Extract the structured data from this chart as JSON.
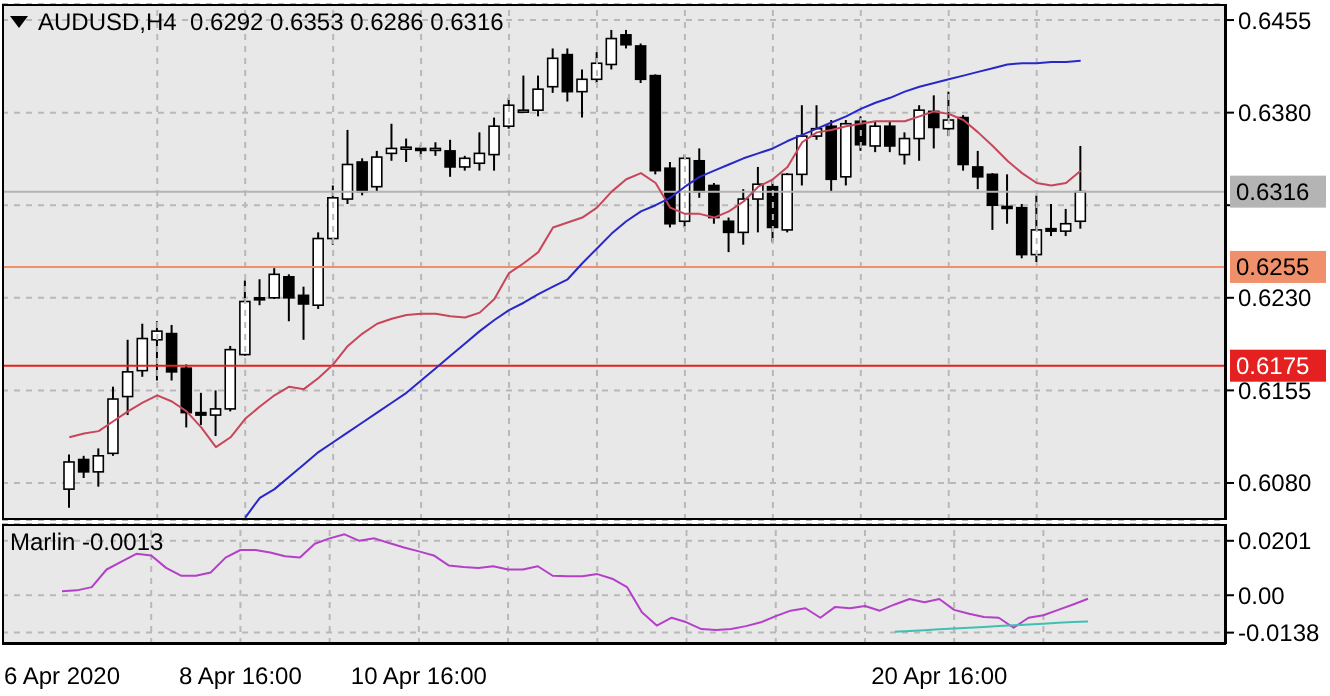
{
  "chart_data": [
    {
      "type": "candlestick",
      "title": "AUDUSD,H4  0.6292 0.6353 0.6286 0.6316",
      "categories": [
        null,
        null,
        null,
        null,
        null,
        null,
        null,
        null,
        null,
        null,
        null,
        null,
        null,
        null,
        null,
        null,
        null,
        null,
        null,
        null,
        null,
        null,
        null,
        null,
        null,
        null,
        null,
        null,
        null,
        null,
        null,
        null,
        null,
        null,
        null,
        null,
        null,
        null,
        null,
        null,
        null,
        null,
        null,
        null,
        null,
        null,
        null,
        null,
        null,
        null,
        null,
        null,
        null,
        null,
        null,
        null,
        null,
        null,
        null,
        null,
        null,
        null,
        null,
        null,
        null,
        null,
        null,
        null,
        null,
        null
      ],
      "ohlc": [
        [
          0.6075,
          0.6103,
          0.606,
          0.6097
        ],
        [
          0.6099,
          0.6102,
          0.6084,
          0.6089
        ],
        [
          0.6089,
          0.6108,
          0.6077,
          0.6102
        ],
        [
          0.6104,
          0.6158,
          0.6102,
          0.6148
        ],
        [
          0.615,
          0.6196,
          0.6135,
          0.617
        ],
        [
          0.6171,
          0.6209,
          0.6166,
          0.6197
        ],
        [
          0.6196,
          0.6211,
          0.6163,
          0.6203
        ],
        [
          0.6201,
          0.6208,
          0.6163,
          0.617
        ],
        [
          0.6173,
          0.6176,
          0.6125,
          0.6137
        ],
        [
          0.6137,
          0.6153,
          0.6127,
          0.6135
        ],
        [
          0.6135,
          0.6155,
          0.6118,
          0.614
        ],
        [
          0.614,
          0.6191,
          0.6138,
          0.6188
        ],
        [
          0.6184,
          0.6244,
          0.6183,
          0.6227
        ],
        [
          0.623,
          0.6245,
          0.6224,
          0.6229
        ],
        [
          0.623,
          0.6254,
          0.6229,
          0.6249
        ],
        [
          0.6247,
          0.6249,
          0.6211,
          0.623
        ],
        [
          0.6232,
          0.6239,
          0.6196,
          0.6225
        ],
        [
          0.6224,
          0.6283,
          0.6221,
          0.6278
        ],
        [
          0.6278,
          0.6321,
          0.6273,
          0.6311
        ],
        [
          0.631,
          0.6366,
          0.6306,
          0.6338
        ],
        [
          0.634,
          0.6343,
          0.6313,
          0.6316
        ],
        [
          0.632,
          0.6349,
          0.6316,
          0.6344
        ],
        [
          0.6347,
          0.6371,
          0.6341,
          0.6351
        ],
        [
          0.6352,
          0.6359,
          0.634,
          0.6352
        ],
        [
          0.6351,
          0.6354,
          0.6344,
          0.635
        ],
        [
          0.635,
          0.6356,
          0.6345,
          0.6351
        ],
        [
          0.6349,
          0.6358,
          0.6328,
          0.6336
        ],
        [
          0.6336,
          0.6345,
          0.6333,
          0.6343
        ],
        [
          0.6339,
          0.6364,
          0.6333,
          0.6347
        ],
        [
          0.6346,
          0.6376,
          0.6333,
          0.6369
        ],
        [
          0.6369,
          0.6392,
          0.6367,
          0.6386
        ],
        [
          0.6382,
          0.641,
          0.638,
          0.6382
        ],
        [
          0.6382,
          0.641,
          0.6377,
          0.6399
        ],
        [
          0.6401,
          0.6432,
          0.6396,
          0.6424
        ],
        [
          0.6427,
          0.6432,
          0.6389,
          0.6397
        ],
        [
          0.6397,
          0.6415,
          0.6376,
          0.6407
        ],
        [
          0.6407,
          0.6429,
          0.6404,
          0.642
        ],
        [
          0.6419,
          0.6447,
          0.6415,
          0.644
        ],
        [
          0.6443,
          0.6447,
          0.6432,
          0.6435
        ],
        [
          0.6434,
          0.6436,
          0.6404,
          0.6407
        ],
        [
          0.641,
          0.6411,
          0.633,
          0.6333
        ],
        [
          0.6335,
          0.634,
          0.6287,
          0.629
        ],
        [
          0.6292,
          0.6346,
          0.6287,
          0.6343
        ],
        [
          0.6341,
          0.6351,
          0.6311,
          0.6316
        ],
        [
          0.6321,
          0.6323,
          0.629,
          0.6295
        ],
        [
          0.6292,
          0.6295,
          0.6267,
          0.6283
        ],
        [
          0.6283,
          0.6318,
          0.6273,
          0.631
        ],
        [
          0.631,
          0.6336,
          0.6283,
          0.6322
        ],
        [
          0.632,
          0.6325,
          0.6275,
          0.6287
        ],
        [
          0.6285,
          0.6331,
          0.6283,
          0.633
        ],
        [
          0.633,
          0.6386,
          0.6321,
          0.6361
        ],
        [
          0.6361,
          0.6386,
          0.6358,
          0.6367
        ],
        [
          0.6369,
          0.6374,
          0.6316,
          0.6326
        ],
        [
          0.6328,
          0.6374,
          0.6321,
          0.6371
        ],
        [
          0.6373,
          0.6377,
          0.6349,
          0.6354
        ],
        [
          0.6353,
          0.6373,
          0.6348,
          0.6369
        ],
        [
          0.6369,
          0.6373,
          0.6348,
          0.6353
        ],
        [
          0.6346,
          0.6364,
          0.6338,
          0.6359
        ],
        [
          0.6359,
          0.6386,
          0.6341,
          0.6382
        ],
        [
          0.6381,
          0.6394,
          0.6351,
          0.6368
        ],
        [
          0.6367,
          0.6397,
          0.6361,
          0.6374
        ],
        [
          0.6376,
          0.6378,
          0.6333,
          0.6338
        ],
        [
          0.6336,
          0.6349,
          0.6318,
          0.6328
        ],
        [
          0.633,
          0.6331,
          0.6285,
          0.6305
        ],
        [
          0.6304,
          0.633,
          0.629,
          0.6303
        ],
        [
          0.6303,
          0.6306,
          0.6262,
          0.6265
        ],
        [
          0.6265,
          0.6313,
          0.6259,
          0.6285
        ],
        [
          0.6286,
          0.6306,
          0.628,
          0.6284
        ],
        [
          0.6284,
          0.6302,
          0.628,
          0.629
        ],
        [
          0.6292,
          0.6353,
          0.6286,
          0.6316
        ]
      ],
      "series": [
        {
          "type": "line",
          "color": "#c8465a",
          "values": [
            0.6117,
            0.612,
            0.6122,
            0.613,
            0.6138,
            0.6145,
            0.6151,
            0.6146,
            0.6138,
            0.6125,
            0.6109,
            0.6117,
            0.6132,
            0.6142,
            0.6151,
            0.6158,
            0.6156,
            0.6165,
            0.6176,
            0.6191,
            0.6201,
            0.6209,
            0.6213,
            0.6216,
            0.6217,
            0.6217,
            0.6215,
            0.6214,
            0.6218,
            0.6229,
            0.625,
            0.6258,
            0.6267,
            0.6287,
            0.6291,
            0.6295,
            0.6303,
            0.6316,
            0.6326,
            0.6331,
            0.6323,
            0.6303,
            0.6298,
            0.6298,
            0.6295,
            0.63,
            0.6308,
            0.632,
            0.6326,
            0.6336,
            0.6356,
            0.6364,
            0.6366,
            0.6369,
            0.6371,
            0.6373,
            0.6373,
            0.6373,
            0.6377,
            0.6381,
            0.6379,
            0.6374,
            0.6364,
            0.6353,
            0.6341,
            0.6331,
            0.6323,
            0.6321,
            0.6323,
            0.6333
          ]
        },
        {
          "type": "line",
          "color": "#2828c8",
          "values": [
            null,
            null,
            null,
            null,
            null,
            null,
            null,
            null,
            null,
            null,
            null,
            null,
            0.6052,
            0.6068,
            0.6075,
            0.6085,
            0.6095,
            0.6105,
            0.6113,
            0.6121,
            0.6129,
            0.6137,
            0.6145,
            0.6153,
            0.6163,
            0.6173,
            0.6183,
            0.6193,
            0.6203,
            0.6212,
            0.622,
            0.6226,
            0.6233,
            0.6239,
            0.6245,
            0.6258,
            0.627,
            0.6282,
            0.6292,
            0.63,
            0.6305,
            0.6311,
            0.632,
            0.6328,
            0.6333,
            0.6338,
            0.6343,
            0.6347,
            0.6351,
            0.6357,
            0.6362,
            0.6367,
            0.6372,
            0.6377,
            0.6383,
            0.6388,
            0.6392,
            0.6397,
            0.6401,
            0.6404,
            0.6407,
            0.641,
            0.6413,
            0.6416,
            0.6419,
            0.642,
            0.642,
            0.6421,
            0.6421,
            0.6422
          ]
        }
      ],
      "ylim": [
        0.605,
        0.6468
      ],
      "yticks": [
        0.6455,
        {
          "value": 0.638,
          "label": "0.6380"
        },
        {
          "value": 0.6305,
          "label": null
        },
        {
          "value": 0.623,
          "label": "0.6230"
        },
        0.6155,
        {
          "value": 0.608,
          "label": "0.6080"
        }
      ],
      "ref_lines": [
        {
          "axis": "y",
          "value": 0.6316,
          "label": "0.6316",
          "color": "#b4b4b4"
        },
        {
          "axis": "y",
          "value": 0.6255,
          "label": "0.6255",
          "color": "#f0906a"
        },
        {
          "axis": "y",
          "value": 0.6175,
          "label": "0.6175",
          "color": "#e52020"
        }
      ],
      "grid": true,
      "tick_labels": "y"
    },
    {
      "type": "line",
      "title": "Marlin -0.0013",
      "categories": [
        "6 Apr 2020",
        null,
        null,
        null,
        null,
        null,
        null,
        null,
        null,
        null,
        null,
        null,
        "8 Apr 16:00",
        null,
        null,
        null,
        null,
        null,
        null,
        null,
        null,
        null,
        null,
        null,
        "10 Apr 16:00",
        null,
        null,
        null,
        null,
        null,
        null,
        null,
        null,
        null,
        null,
        null,
        null,
        null,
        null,
        null,
        null,
        null,
        null,
        null,
        null,
        null,
        null,
        null,
        null,
        null,
        null,
        null,
        null,
        null,
        null,
        null,
        null,
        null,
        null,
        "20 Apr 16:00",
        null,
        null,
        null,
        null,
        null,
        null,
        null,
        null,
        null,
        null
      ],
      "series": [
        {
          "color": "#b440c8",
          "values": [
            0.0015,
            0.0018,
            0.003,
            0.0095,
            0.0124,
            0.0153,
            0.0147,
            0.0101,
            0.0072,
            0.0072,
            0.0084,
            0.0139,
            0.0167,
            0.0167,
            0.0158,
            0.0144,
            0.0139,
            0.019,
            0.021,
            0.0225,
            0.0201,
            0.021,
            0.0193,
            0.0176,
            0.0162,
            0.0147,
            0.011,
            0.0104,
            0.0101,
            0.0107,
            0.0095,
            0.0095,
            0.0107,
            0.0072,
            0.007,
            0.007,
            0.0078,
            0.0061,
            0.003,
            -0.0063,
            -0.0112,
            -0.0083,
            -0.01,
            -0.0125,
            -0.0128,
            -0.0125,
            -0.0114,
            -0.01,
            -0.0077,
            -0.0057,
            -0.0048,
            -0.0083,
            -0.0043,
            -0.0048,
            -0.004,
            -0.0057,
            -0.0034,
            -0.0014,
            -0.0026,
            -0.0014,
            -0.0054,
            -0.0068,
            -0.008,
            -0.0083,
            -0.012,
            -0.0083,
            -0.0074,
            -0.0054,
            -0.0034,
            -0.0013
          ]
        },
        {
          "color": "#40c0b4",
          "values": [
            null,
            null,
            null,
            null,
            null,
            null,
            null,
            null,
            null,
            null,
            null,
            null,
            null,
            null,
            null,
            null,
            null,
            null,
            null,
            null,
            null,
            null,
            null,
            null,
            null,
            null,
            null,
            null,
            null,
            null,
            null,
            null,
            null,
            null,
            null,
            null,
            null,
            null,
            null,
            null,
            null,
            null,
            null,
            null,
            null,
            null,
            null,
            null,
            null,
            null,
            null,
            null,
            null,
            null,
            null,
            null,
            -0.0135,
            -0.0132,
            -0.0129,
            -0.0126,
            -0.0123,
            -0.012,
            -0.0117,
            -0.0114,
            -0.0111,
            -0.0108,
            -0.0105,
            -0.0102,
            -0.0099,
            -0.0097
          ]
        }
      ],
      "ylim": [
        -0.018,
        0.0263
      ],
      "yticks": [
        0.0201,
        {
          "value": 0,
          "label": "0.00"
        },
        -0.0138
      ],
      "grid": true
    }
  ]
}
